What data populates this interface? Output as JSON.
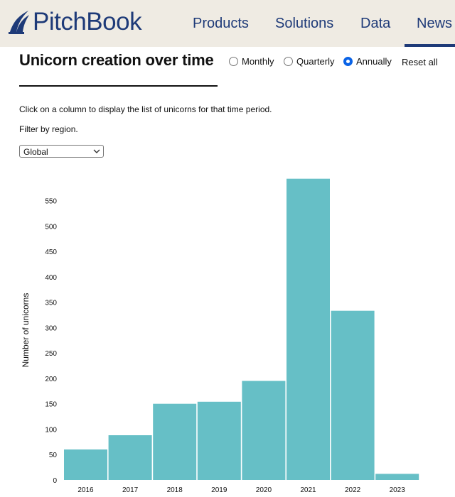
{
  "header": {
    "brand": "PitchBook",
    "nav": [
      "Products",
      "Solutions",
      "Data",
      "News"
    ],
    "brand_color": "#1e3a78",
    "background": "#efebe3"
  },
  "page": {
    "title": "Unicorn creation over time",
    "radio_options": [
      {
        "label": "Monthly",
        "checked": false
      },
      {
        "label": "Quarterly",
        "checked": false
      },
      {
        "label": "Annually",
        "checked": true
      }
    ],
    "reset_label": "Reset all",
    "instruction": "Click on a column to display the list of unicorns for that time period.",
    "filter_label": "Filter by region.",
    "region_select": {
      "selected": "Global"
    }
  },
  "chart_data": {
    "type": "bar",
    "categories": [
      "2016",
      "2017",
      "2018",
      "2019",
      "2020",
      "2021",
      "2022",
      "2023"
    ],
    "values": [
      60,
      88,
      150,
      154,
      195,
      593,
      333,
      12
    ],
    "ylabel": "Number of unicorns",
    "xlabel": "",
    "yticks": [
      0,
      50,
      100,
      150,
      200,
      250,
      300,
      350,
      400,
      450,
      500,
      550
    ],
    "ylim": [
      0,
      590
    ],
    "bar_color": "#66bfc6",
    "grid": false
  }
}
